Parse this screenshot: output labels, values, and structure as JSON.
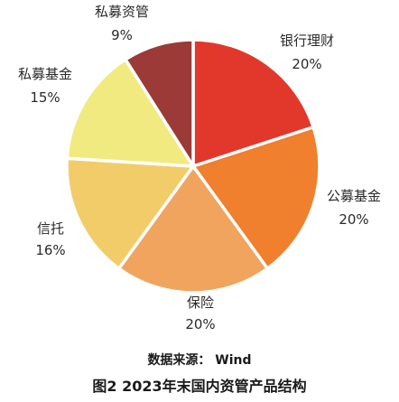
{
  "chart_data": {
    "type": "pie",
    "slices": [
      {
        "label": "银行理财",
        "value": 20,
        "value_label": "20%",
        "color": "#e2382b"
      },
      {
        "label": "公募基金",
        "value": 20,
        "value_label": "20%",
        "color": "#f07f2e"
      },
      {
        "label": "保险",
        "value": 20,
        "value_label": "20%",
        "color": "#f0a45e"
      },
      {
        "label": "信托",
        "value": 16,
        "value_label": "16%",
        "color": "#f3cc6a"
      },
      {
        "label": "私募基金",
        "value": 15,
        "value_label": "15%",
        "color": "#f1ea80"
      },
      {
        "label": "私募资管",
        "value": 9,
        "value_label": "9%",
        "color": "#9b3a36"
      }
    ]
  },
  "source_text": "数据来源： Wind",
  "caption": "图2  2023年末国内资管产品结构"
}
